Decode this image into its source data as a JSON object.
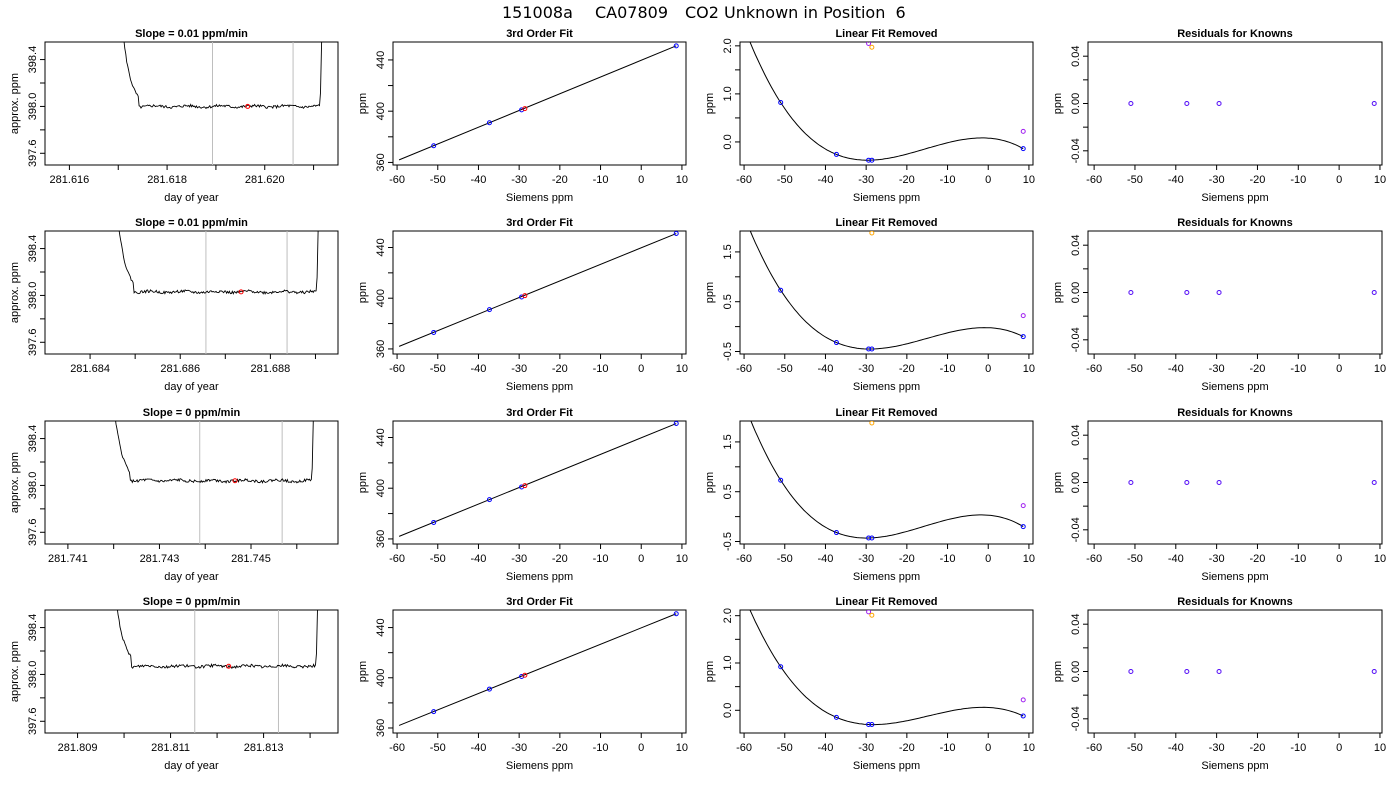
{
  "page": {
    "title_parts": [
      "151008a",
      "CA07809",
      "CO2 Unknown in Position  6"
    ]
  },
  "colors": {
    "axis": "#000000",
    "trace": "#000000",
    "marker_gray": "#bebebe",
    "point_red": "#ff0000",
    "point_blue": "#0000ff",
    "point_purple": "#a020f0",
    "point_orange": "#ffa500",
    "fit_line": "#000000"
  },
  "chart_data": [
    {
      "type": "line",
      "row": 0,
      "col": 0,
      "title": "Slope =  0.01  ppm/min",
      "xlabel": "day of year",
      "ylabel": "approx. ppm",
      "xlim": [
        281.6155,
        281.6215
      ],
      "ylim": [
        397.5,
        398.55
      ],
      "xticks": [
        281.616,
        281.617,
        281.618,
        281.619,
        281.62,
        281.621
      ],
      "xtick_labels": [
        "281.616",
        "",
        "281.618",
        "",
        "281.620",
        ""
      ],
      "yticks": [
        397.6,
        397.8,
        398.0,
        398.2,
        398.4
      ],
      "ytick_labels": [
        "397.6",
        "",
        "398.0",
        "",
        "398.4"
      ],
      "trace": {
        "x_start": 281.6169,
        "x_end": 281.6212,
        "baseline": 398.0,
        "noise": 0.012
      },
      "vlines": [
        281.61893,
        281.62058
      ],
      "marker": {
        "x": 281.61965,
        "y": 398.0
      }
    },
    {
      "type": "line",
      "row": 1,
      "col": 0,
      "title": "Slope =  0.01  ppm/min",
      "xlabel": "day of year",
      "ylabel": "approx. ppm",
      "xlim": [
        281.683,
        281.6895
      ],
      "ylim": [
        397.5,
        398.55
      ],
      "xticks": [
        281.684,
        281.685,
        281.686,
        281.687,
        281.688,
        281.689
      ],
      "xtick_labels": [
        "281.684",
        "",
        "281.686",
        "",
        "281.688",
        ""
      ],
      "yticks": [
        397.6,
        397.8,
        398.0,
        398.2,
        398.4
      ],
      "ytick_labels": [
        "397.6",
        "",
        "398.0",
        "",
        "398.4"
      ],
      "trace": {
        "x_start": 281.6844,
        "x_end": 281.6891,
        "baseline": 398.03,
        "noise": 0.012
      },
      "vlines": [
        281.68657,
        281.68837
      ],
      "marker": {
        "x": 281.68735,
        "y": 398.03
      }
    },
    {
      "type": "line",
      "row": 2,
      "col": 0,
      "title": "Slope =  0  ppm/min",
      "xlabel": "day of year",
      "ylabel": "approx. ppm",
      "xlim": [
        281.7405,
        281.7469
      ],
      "ylim": [
        397.5,
        398.55
      ],
      "xticks": [
        281.741,
        281.742,
        281.743,
        281.744,
        281.745,
        281.746
      ],
      "xtick_labels": [
        "281.741",
        "",
        "281.743",
        "",
        "281.745",
        ""
      ],
      "yticks": [
        397.6,
        397.8,
        398.0,
        398.2,
        398.4
      ],
      "ytick_labels": [
        "397.6",
        "",
        "398.0",
        "",
        "398.4"
      ],
      "trace": {
        "x_start": 281.7418,
        "x_end": 281.7464,
        "baseline": 398.04,
        "noise": 0.012
      },
      "vlines": [
        281.74388,
        281.74568
      ],
      "marker": {
        "x": 281.74465,
        "y": 398.04
      }
    },
    {
      "type": "line",
      "row": 3,
      "col": 0,
      "title": "Slope =  0  ppm/min",
      "xlabel": "day of year",
      "ylabel": "approx. ppm",
      "xlim": [
        281.8083,
        281.8146
      ],
      "ylim": [
        397.5,
        398.55
      ],
      "xticks": [
        281.809,
        281.81,
        281.811,
        281.812,
        281.813,
        281.814
      ],
      "xtick_labels": [
        "281.809",
        "",
        "281.811",
        "",
        "281.813",
        ""
      ],
      "yticks": [
        397.6,
        397.8,
        398.0,
        398.2,
        398.4
      ],
      "ytick_labels": [
        "397.6",
        "",
        "398.0",
        "",
        "398.4"
      ],
      "trace": {
        "x_start": 281.8096,
        "x_end": 281.8142,
        "baseline": 398.07,
        "noise": 0.012
      },
      "vlines": [
        281.81152,
        281.81332
      ],
      "marker": {
        "x": 281.81225,
        "y": 398.07
      }
    },
    {
      "type": "scatter",
      "row": 0,
      "col": 1,
      "title": "3rd Order Fit",
      "xlabel": "Siemens ppm",
      "ylabel": "ppm",
      "xlim": [
        -61,
        11
      ],
      "ylim": [
        358,
        454
      ],
      "xticks": [
        -60,
        -50,
        -40,
        -30,
        -20,
        -10,
        0,
        10
      ],
      "xtick_labels": [
        "-60",
        "-50",
        "-40",
        "-30",
        "-20",
        "-10",
        "0",
        "10"
      ],
      "yticks": [
        360,
        380,
        400,
        420,
        440
      ],
      "ytick_labels": [
        "360",
        "",
        "400",
        "",
        "440"
      ],
      "line": {
        "x": [
          -59.5,
          8.6
        ],
        "y": [
          362,
          451
        ]
      },
      "points_blue": [
        [
          -51.0,
          373
        ],
        [
          -37.3,
          391
        ],
        [
          -29.4,
          401
        ],
        [
          8.6,
          451
        ]
      ],
      "points_red": [
        [
          -28.6,
          402
        ]
      ]
    },
    {
      "type": "scatter",
      "row": 1,
      "col": 1,
      "title": "3rd Order Fit",
      "xlabel": "Siemens ppm",
      "ylabel": "ppm",
      "xlim": [
        -61,
        11
      ],
      "ylim": [
        356,
        453
      ],
      "xticks": [
        -60,
        -50,
        -40,
        -30,
        -20,
        -10,
        0,
        10
      ],
      "xtick_labels": [
        "-60",
        "-50",
        "-40",
        "-30",
        "-20",
        "-10",
        "0",
        "10"
      ],
      "yticks": [
        360,
        380,
        400,
        420,
        440
      ],
      "ytick_labels": [
        "360",
        "",
        "400",
        "",
        "440"
      ],
      "line": {
        "x": [
          -59.5,
          8.6
        ],
        "y": [
          362,
          451
        ]
      },
      "points_blue": [
        [
          -51.0,
          373
        ],
        [
          -37.3,
          391
        ],
        [
          -29.4,
          401
        ],
        [
          8.6,
          451
        ]
      ],
      "points_red": [
        [
          -28.6,
          402
        ]
      ]
    },
    {
      "type": "scatter",
      "row": 2,
      "col": 1,
      "title": "3rd Order Fit",
      "xlabel": "Siemens ppm",
      "ylabel": "ppm",
      "xlim": [
        -61,
        11
      ],
      "ylim": [
        356,
        453
      ],
      "xticks": [
        -60,
        -50,
        -40,
        -30,
        -20,
        -10,
        0,
        10
      ],
      "xtick_labels": [
        "-60",
        "-50",
        "-40",
        "-30",
        "-20",
        "-10",
        "0",
        "10"
      ],
      "yticks": [
        360,
        380,
        400,
        420,
        440
      ],
      "ytick_labels": [
        "360",
        "",
        "400",
        "",
        "440"
      ],
      "line": {
        "x": [
          -59.5,
          8.6
        ],
        "y": [
          362,
          451
        ]
      },
      "points_blue": [
        [
          -51.0,
          373
        ],
        [
          -37.3,
          391
        ],
        [
          -29.4,
          401
        ],
        [
          8.6,
          451
        ]
      ],
      "points_red": [
        [
          -28.6,
          402
        ]
      ]
    },
    {
      "type": "scatter",
      "row": 3,
      "col": 1,
      "title": "3rd Order Fit",
      "xlabel": "Siemens ppm",
      "ylabel": "ppm",
      "xlim": [
        -61,
        11
      ],
      "ylim": [
        356,
        454
      ],
      "xticks": [
        -60,
        -50,
        -40,
        -30,
        -20,
        -10,
        0,
        10
      ],
      "xtick_labels": [
        "-60",
        "-50",
        "-40",
        "-30",
        "-20",
        "-10",
        "0",
        "10"
      ],
      "yticks": [
        360,
        380,
        400,
        420,
        440
      ],
      "ytick_labels": [
        "360",
        "",
        "400",
        "",
        "440"
      ],
      "line": {
        "x": [
          -59.5,
          8.6
        ],
        "y": [
          362,
          451
        ]
      },
      "points_blue": [
        [
          -51.0,
          373
        ],
        [
          -37.3,
          391
        ],
        [
          -29.4,
          401
        ],
        [
          8.6,
          451
        ]
      ],
      "points_red": [
        [
          -28.6,
          402
        ]
      ]
    },
    {
      "type": "scatter",
      "row": 0,
      "col": 2,
      "title": "Linear Fit Removed",
      "xlabel": "Siemens ppm",
      "ylabel": "ppm",
      "xlim": [
        -61,
        11
      ],
      "ylim": [
        -0.48,
        2.08
      ],
      "xticks": [
        -60,
        -50,
        -40,
        -30,
        -20,
        -10,
        0,
        10
      ],
      "xtick_labels": [
        "-60",
        "-50",
        "-40",
        "-30",
        "-20",
        "-10",
        "0",
        "10"
      ],
      "yticks": [
        0.0,
        0.5,
        1.0,
        1.5,
        2.0
      ],
      "ytick_labels": [
        "0.0",
        "",
        "1.0",
        "",
        "2.0"
      ],
      "curve": {
        "x0": -59.5,
        "x1": 8.6,
        "peak_x": 0,
        "peak_y": 0.0,
        "min_y": -0.38
      },
      "points_blue": [
        [
          -51.0,
          0.82
        ],
        [
          -37.3,
          -0.26
        ],
        [
          -29.4,
          -0.38
        ],
        [
          -28.6,
          -0.38
        ],
        [
          8.6,
          -0.14
        ]
      ],
      "points_purple": [
        [
          -29.4,
          2.05
        ],
        [
          8.6,
          0.22
        ]
      ],
      "points_orange": [
        [
          -28.6,
          1.97
        ]
      ]
    },
    {
      "type": "scatter",
      "row": 1,
      "col": 2,
      "title": "Linear Fit Removed",
      "xlabel": "Siemens ppm",
      "ylabel": "ppm",
      "xlim": [
        -61,
        11
      ],
      "ylim": [
        -0.55,
        1.92
      ],
      "xticks": [
        -60,
        -50,
        -40,
        -30,
        -20,
        -10,
        0,
        10
      ],
      "xtick_labels": [
        "-60",
        "-50",
        "-40",
        "-30",
        "-20",
        "-10",
        "0",
        "10"
      ],
      "yticks": [
        -0.5,
        0.0,
        0.5,
        1.0,
        1.5
      ],
      "ytick_labels": [
        "-0.5",
        "",
        "0.5",
        "",
        "1.5"
      ],
      "curve": {
        "x0": -59.5,
        "x1": 8.6,
        "peak_x": 0,
        "peak_y": 0.0,
        "min_y": -0.45
      },
      "points_blue": [
        [
          -51.0,
          0.73
        ],
        [
          -37.3,
          -0.32
        ],
        [
          -29.4,
          -0.45
        ],
        [
          -28.6,
          -0.45
        ],
        [
          8.6,
          -0.2
        ]
      ],
      "points_purple": [
        [
          8.6,
          0.22
        ]
      ],
      "points_orange": [
        [
          -28.6,
          1.88
        ]
      ]
    },
    {
      "type": "scatter",
      "row": 2,
      "col": 2,
      "title": "Linear Fit Removed",
      "xlabel": "Siemens ppm",
      "ylabel": "ppm",
      "xlim": [
        -61,
        11
      ],
      "ylim": [
        -0.55,
        1.92
      ],
      "xticks": [
        -60,
        -50,
        -40,
        -30,
        -20,
        -10,
        0,
        10
      ],
      "xtick_labels": [
        "-60",
        "-50",
        "-40",
        "-30",
        "-20",
        "-10",
        "0",
        "10"
      ],
      "yticks": [
        -0.5,
        0.0,
        0.5,
        1.0,
        1.5
      ],
      "ytick_labels": [
        "-0.5",
        "",
        "0.5",
        "",
        "1.5"
      ],
      "curve": {
        "x0": -59.5,
        "x1": 8.6,
        "peak_x": 0,
        "peak_y": 0.0,
        "min_y": -0.43
      },
      "points_blue": [
        [
          -51.0,
          0.73
        ],
        [
          -37.3,
          -0.32
        ],
        [
          -29.4,
          -0.43
        ],
        [
          -28.6,
          -0.43
        ],
        [
          8.6,
          -0.2
        ]
      ],
      "points_purple": [
        [
          8.6,
          0.22
        ]
      ],
      "points_orange": [
        [
          -28.6,
          1.88
        ]
      ]
    },
    {
      "type": "scatter",
      "row": 3,
      "col": 2,
      "title": "Linear Fit Removed",
      "xlabel": "Siemens ppm",
      "ylabel": "ppm",
      "xlim": [
        -61,
        11
      ],
      "ylim": [
        -0.48,
        2.12
      ],
      "xticks": [
        -60,
        -50,
        -40,
        -30,
        -20,
        -10,
        0,
        10
      ],
      "xtick_labels": [
        "-60",
        "-50",
        "-40",
        "-30",
        "-20",
        "-10",
        "0",
        "10"
      ],
      "yticks": [
        0.0,
        0.5,
        1.0,
        1.5,
        2.0
      ],
      "ytick_labels": [
        "0.0",
        "",
        "1.0",
        "",
        "2.0"
      ],
      "curve": {
        "x0": -59.5,
        "x1": 8.6,
        "peak_x": 0,
        "peak_y": 0.0,
        "min_y": -0.3
      },
      "points_blue": [
        [
          -51.0,
          0.92
        ],
        [
          -37.3,
          -0.15
        ],
        [
          -29.4,
          -0.3
        ],
        [
          -28.6,
          -0.3
        ],
        [
          8.6,
          -0.12
        ]
      ],
      "points_purple": [
        [
          -29.4,
          2.08
        ],
        [
          8.6,
          0.22
        ]
      ],
      "points_orange": [
        [
          -28.6,
          2.01
        ]
      ]
    },
    {
      "type": "scatter",
      "row": 0,
      "col": 3,
      "title": "Residuals for Knowns",
      "xlabel": "Siemens ppm",
      "ylabel": "ppm",
      "xlim": [
        -61.5,
        10.5
      ],
      "ylim": [
        -0.052,
        0.052
      ],
      "xticks": [
        -60,
        -50,
        -40,
        -30,
        -20,
        -10,
        0,
        10
      ],
      "xtick_labels": [
        "-60",
        "-50",
        "-40",
        "-30",
        "-20",
        "-10",
        "0",
        "10"
      ],
      "yticks": [
        -0.04,
        -0.02,
        0.0,
        0.02,
        0.04
      ],
      "ytick_labels": [
        "-0.04",
        "",
        "0.00",
        "",
        "0.04"
      ],
      "points_residual": [
        [
          -51.0,
          0.0
        ],
        [
          -37.3,
          0.0
        ],
        [
          -29.4,
          0.0
        ],
        [
          8.6,
          0.0
        ]
      ]
    },
    {
      "type": "scatter",
      "row": 1,
      "col": 3,
      "title": "Residuals for Knowns",
      "xlabel": "Siemens ppm",
      "ylabel": "ppm",
      "xlim": [
        -61.5,
        10.5
      ],
      "ylim": [
        -0.052,
        0.052
      ],
      "xticks": [
        -60,
        -50,
        -40,
        -30,
        -20,
        -10,
        0,
        10
      ],
      "xtick_labels": [
        "-60",
        "-50",
        "-40",
        "-30",
        "-20",
        "-10",
        "0",
        "10"
      ],
      "yticks": [
        -0.04,
        -0.02,
        0.0,
        0.02,
        0.04
      ],
      "ytick_labels": [
        "-0.04",
        "",
        "0.00",
        "",
        "0.04"
      ],
      "points_residual": [
        [
          -51.0,
          0.0
        ],
        [
          -37.3,
          0.0
        ],
        [
          -29.4,
          0.0
        ],
        [
          8.6,
          0.0
        ]
      ]
    },
    {
      "type": "scatter",
      "row": 2,
      "col": 3,
      "title": "Residuals for Knowns",
      "xlabel": "Siemens ppm",
      "ylabel": "ppm",
      "xlim": [
        -61.5,
        10.5
      ],
      "ylim": [
        -0.052,
        0.052
      ],
      "xticks": [
        -60,
        -50,
        -40,
        -30,
        -20,
        -10,
        0,
        10
      ],
      "xtick_labels": [
        "-60",
        "-50",
        "-40",
        "-30",
        "-20",
        "-10",
        "0",
        "10"
      ],
      "yticks": [
        -0.04,
        -0.02,
        0.0,
        0.02,
        0.04
      ],
      "ytick_labels": [
        "-0.04",
        "",
        "0.00",
        "",
        "0.04"
      ],
      "points_residual": [
        [
          -51.0,
          0.0
        ],
        [
          -37.3,
          0.0
        ],
        [
          -29.4,
          0.0
        ],
        [
          8.6,
          0.0
        ]
      ]
    },
    {
      "type": "scatter",
      "row": 3,
      "col": 3,
      "title": "Residuals for Knowns",
      "xlabel": "Siemens ppm",
      "ylabel": "ppm",
      "xlim": [
        -61.5,
        10.5
      ],
      "ylim": [
        -0.052,
        0.052
      ],
      "xticks": [
        -60,
        -50,
        -40,
        -30,
        -20,
        -10,
        0,
        10
      ],
      "xtick_labels": [
        "-60",
        "-50",
        "-40",
        "-30",
        "-20",
        "-10",
        "0",
        "10"
      ],
      "yticks": [
        -0.04,
        -0.02,
        0.0,
        0.02,
        0.04
      ],
      "ytick_labels": [
        "-0.04",
        "",
        "0.00",
        "",
        "0.04"
      ],
      "points_residual": [
        [
          -51.0,
          0.0
        ],
        [
          -37.3,
          0.0
        ],
        [
          -29.4,
          0.0
        ],
        [
          8.6,
          0.0
        ]
      ]
    }
  ]
}
